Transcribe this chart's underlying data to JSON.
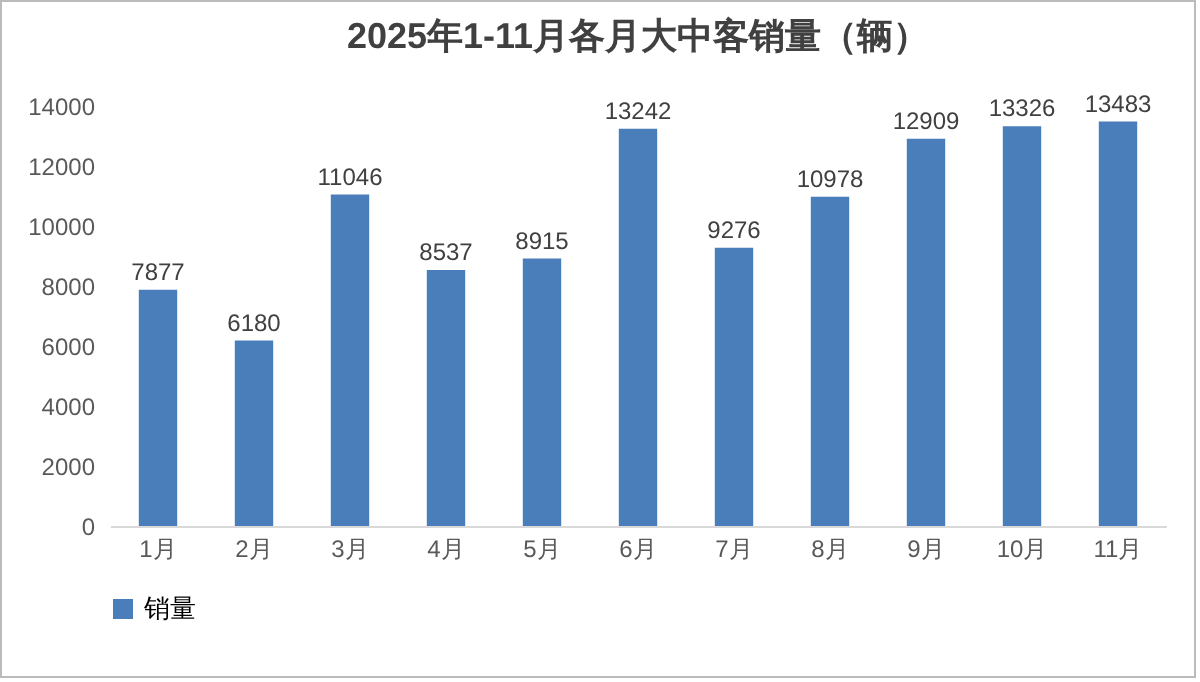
{
  "chart_data": {
    "type": "bar",
    "title": "2025年1-11月各月大中客销量（辆）",
    "categories": [
      "1月",
      "2月",
      "3月",
      "4月",
      "5月",
      "6月",
      "7月",
      "8月",
      "9月",
      "10月",
      "11月"
    ],
    "series": [
      {
        "name": "销量",
        "color": "#4a7ebb",
        "values": [
          7877,
          6180,
          11046,
          8537,
          8915,
          13242,
          9276,
          10978,
          12909,
          13326,
          13483
        ]
      }
    ],
    "ylim": [
      0,
      14000
    ],
    "yticks": [
      0,
      2000,
      4000,
      6000,
      8000,
      10000,
      12000,
      14000
    ],
    "data_labels": true,
    "legend": "bottom"
  }
}
